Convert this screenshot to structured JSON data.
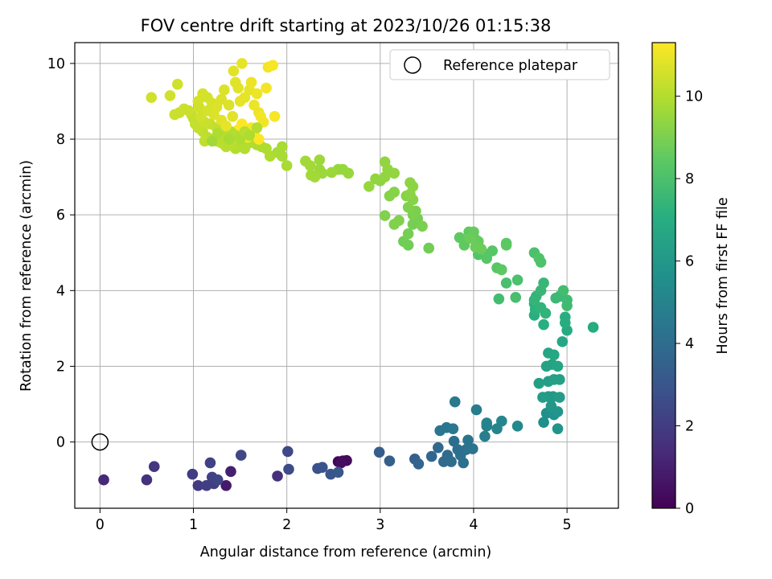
{
  "chart_data": {
    "type": "scatter",
    "title": "FOV centre drift starting at 2023/10/26 01:15:38",
    "xlabel": "Angular distance from reference (arcmin)",
    "ylabel": "Rotation from reference (arcmin)",
    "xlim": [
      -0.27,
      5.55
    ],
    "ylim": [
      -1.75,
      10.55
    ],
    "xticks": [
      "0",
      "1",
      "2",
      "3",
      "4",
      "5"
    ],
    "yticks": [
      "0",
      "2",
      "4",
      "6",
      "8",
      "10"
    ],
    "grid": true,
    "legend": {
      "position": "top-right",
      "label": "Reference platepar",
      "marker": "open-circle"
    },
    "reference_point": {
      "x": 0.0,
      "y": 0.0
    },
    "colorbar": {
      "label": "Hours from first FF file",
      "range": [
        0,
        11.3
      ],
      "ticks": [
        "0",
        "2",
        "4",
        "6",
        "8",
        "10"
      ],
      "colormap": "viridis"
    },
    "points": [
      [
        2.55,
        -0.52,
        0.1
      ],
      [
        2.6,
        -0.5,
        0.2
      ],
      [
        2.64,
        -0.49,
        0.3
      ],
      [
        2.58,
        -0.55,
        0.4
      ],
      [
        1.35,
        -1.15,
        0.8
      ],
      [
        1.4,
        -0.78,
        1.0
      ],
      [
        0.04,
        -1.0,
        1.3
      ],
      [
        1.9,
        -0.9,
        1.5
      ],
      [
        0.5,
        -1.0,
        1.6
      ],
      [
        0.58,
        -0.65,
        1.8
      ],
      [
        1.05,
        -1.15,
        1.9
      ],
      [
        0.99,
        -0.85,
        2.0
      ],
      [
        1.14,
        -1.15,
        2.1
      ],
      [
        1.22,
        -1.1,
        2.1
      ],
      [
        1.2,
        -0.93,
        2.2
      ],
      [
        1.18,
        -0.55,
        2.2
      ],
      [
        1.26,
        -1.0,
        2.3
      ],
      [
        1.51,
        -0.35,
        2.4
      ],
      [
        2.01,
        -0.25,
        2.5
      ],
      [
        2.02,
        -0.72,
        2.6
      ],
      [
        2.33,
        -0.7,
        2.8
      ],
      [
        2.38,
        -0.67,
        2.9
      ],
      [
        2.47,
        -0.85,
        3.0
      ],
      [
        2.55,
        -0.8,
        3.1
      ],
      [
        2.99,
        -0.27,
        3.3
      ],
      [
        3.1,
        -0.5,
        3.4
      ],
      [
        3.37,
        -0.45,
        3.5
      ],
      [
        3.41,
        -0.58,
        3.6
      ],
      [
        3.55,
        -0.38,
        3.7
      ],
      [
        3.62,
        -0.15,
        3.8
      ],
      [
        3.68,
        -0.52,
        3.9
      ],
      [
        3.72,
        -0.35,
        3.9
      ],
      [
        3.76,
        -0.52,
        4.0
      ],
      [
        3.79,
        0.02,
        4.0
      ],
      [
        3.83,
        -0.2,
        4.1
      ],
      [
        3.86,
        -0.35,
        4.1
      ],
      [
        3.89,
        -0.55,
        4.2
      ],
      [
        3.92,
        -0.2,
        4.2
      ],
      [
        3.94,
        0.05,
        4.3
      ],
      [
        3.99,
        -0.18,
        4.3
      ],
      [
        3.64,
        0.3,
        4.4
      ],
      [
        3.71,
        0.38,
        4.4
      ],
      [
        3.78,
        0.35,
        4.5
      ],
      [
        3.8,
        1.06,
        4.6
      ],
      [
        4.03,
        0.85,
        4.7
      ],
      [
        4.12,
        0.15,
        4.8
      ],
      [
        4.14,
        0.42,
        4.9
      ],
      [
        4.14,
        0.5,
        5.0
      ],
      [
        4.25,
        0.35,
        5.1
      ],
      [
        4.3,
        0.55,
        5.2
      ],
      [
        4.47,
        0.42,
        5.3
      ],
      [
        4.75,
        0.52,
        5.5
      ],
      [
        4.78,
        0.76,
        5.6
      ],
      [
        4.86,
        0.72,
        5.7
      ],
      [
        4.9,
        0.35,
        5.8
      ],
      [
        4.9,
        0.8,
        5.9
      ],
      [
        4.83,
        0.95,
        6.0
      ],
      [
        4.8,
        1.2,
        6.1
      ],
      [
        4.85,
        1.2,
        6.1
      ],
      [
        4.92,
        1.18,
        6.2
      ],
      [
        4.74,
        1.18,
        6.2
      ],
      [
        4.7,
        1.55,
        6.3
      ],
      [
        4.8,
        1.6,
        6.3
      ],
      [
        4.86,
        1.65,
        6.4
      ],
      [
        4.92,
        1.65,
        6.4
      ],
      [
        4.78,
        2.0,
        6.5
      ],
      [
        4.84,
        2.05,
        6.5
      ],
      [
        4.9,
        2.0,
        6.6
      ],
      [
        4.8,
        2.35,
        6.6
      ],
      [
        4.86,
        2.3,
        6.7
      ],
      [
        4.95,
        2.65,
        6.7
      ],
      [
        5.0,
        2.95,
        6.8
      ],
      [
        5.28,
        3.03,
        6.9
      ],
      [
        4.98,
        3.15,
        7.0
      ],
      [
        4.98,
        3.3,
        7.0
      ],
      [
        4.75,
        3.1,
        7.1
      ],
      [
        4.65,
        3.35,
        7.1
      ],
      [
        4.66,
        3.5,
        7.2
      ],
      [
        4.65,
        3.65,
        7.2
      ],
      [
        4.72,
        3.55,
        7.3
      ],
      [
        4.77,
        3.4,
        7.3
      ],
      [
        4.65,
        3.75,
        7.4
      ],
      [
        4.67,
        3.85,
        7.4
      ],
      [
        4.72,
        4.0,
        7.5
      ],
      [
        4.75,
        4.2,
        7.5
      ],
      [
        4.88,
        3.8,
        7.6
      ],
      [
        4.92,
        3.85,
        7.6
      ],
      [
        5.0,
        3.6,
        7.7
      ],
      [
        5.0,
        3.75,
        7.7
      ],
      [
        4.96,
        4.0,
        7.8
      ],
      [
        4.27,
        3.78,
        7.8
      ],
      [
        4.35,
        4.2,
        7.9
      ],
      [
        4.45,
        3.82,
        7.9
      ],
      [
        4.47,
        4.28,
        8.0
      ],
      [
        4.65,
        5.0,
        8.0
      ],
      [
        4.7,
        4.85,
        8.1
      ],
      [
        4.72,
        4.75,
        8.1
      ],
      [
        4.05,
        4.95,
        8.2
      ],
      [
        4.1,
        5.0,
        8.2
      ],
      [
        4.14,
        4.85,
        8.3
      ],
      [
        4.2,
        5.05,
        8.3
      ],
      [
        4.25,
        4.6,
        8.3
      ],
      [
        4.3,
        4.55,
        8.4
      ],
      [
        4.35,
        5.2,
        8.4
      ],
      [
        4.35,
        5.25,
        8.4
      ],
      [
        3.85,
        5.4,
        8.5
      ],
      [
        3.9,
        5.2,
        8.5
      ],
      [
        3.95,
        5.55,
        8.5
      ],
      [
        4.0,
        5.55,
        8.6
      ],
      [
        4.02,
        5.35,
        8.6
      ],
      [
        4.05,
        5.3,
        8.6
      ],
      [
        4.08,
        5.1,
        8.7
      ],
      [
        3.96,
        5.38,
        8.7
      ],
      [
        4.02,
        5.15,
        8.7
      ],
      [
        3.52,
        5.12,
        8.8
      ],
      [
        3.3,
        5.2,
        8.8
      ],
      [
        3.25,
        5.3,
        8.8
      ],
      [
        3.3,
        5.5,
        8.9
      ],
      [
        3.35,
        5.75,
        8.9
      ],
      [
        3.4,
        5.9,
        8.9
      ],
      [
        3.45,
        5.7,
        9.0
      ],
      [
        3.38,
        6.1,
        9.0
      ],
      [
        3.35,
        6.0,
        9.0
      ],
      [
        3.3,
        6.2,
        9.1
      ],
      [
        3.2,
        5.85,
        9.1
      ],
      [
        3.05,
        5.98,
        9.1
      ],
      [
        3.15,
        5.75,
        9.1
      ],
      [
        3.35,
        6.4,
        9.2
      ],
      [
        3.28,
        6.5,
        9.2
      ],
      [
        3.1,
        6.5,
        9.2
      ],
      [
        3.15,
        6.6,
        9.2
      ],
      [
        3.32,
        6.55,
        9.3
      ],
      [
        3.32,
        6.85,
        9.3
      ],
      [
        3.35,
        6.75,
        9.3
      ],
      [
        3.0,
        6.9,
        9.3
      ],
      [
        2.95,
        6.95,
        9.4
      ],
      [
        3.05,
        7.0,
        9.4
      ],
      [
        3.08,
        7.2,
        9.4
      ],
      [
        3.05,
        7.4,
        9.4
      ],
      [
        3.15,
        7.1,
        9.4
      ],
      [
        2.88,
        6.75,
        9.5
      ],
      [
        2.66,
        7.1,
        9.5
      ],
      [
        2.6,
        7.2,
        9.5
      ],
      [
        2.55,
        7.2,
        9.5
      ],
      [
        2.48,
        7.12,
        9.6
      ],
      [
        2.38,
        7.1,
        9.6
      ],
      [
        2.35,
        7.2,
        9.6
      ],
      [
        2.35,
        7.45,
        9.6
      ],
      [
        2.26,
        7.05,
        9.7
      ],
      [
        2.3,
        7.0,
        9.7
      ],
      [
        2.2,
        7.42,
        9.7
      ],
      [
        2.25,
        7.3,
        9.7
      ],
      [
        2.0,
        7.3,
        9.8
      ],
      [
        1.95,
        7.55,
        9.8
      ],
      [
        1.95,
        7.8,
        9.8
      ],
      [
        1.9,
        7.65,
        9.8
      ],
      [
        1.82,
        7.55,
        9.9
      ],
      [
        1.78,
        7.75,
        9.9
      ],
      [
        1.73,
        7.8,
        9.9
      ],
      [
        1.68,
        7.85,
        9.9
      ],
      [
        1.6,
        7.9,
        10.0
      ],
      [
        1.55,
        7.75,
        10.0
      ],
      [
        1.5,
        7.8,
        10.0
      ],
      [
        1.45,
        7.75,
        10.0
      ],
      [
        1.4,
        7.85,
        10.1
      ],
      [
        1.35,
        7.8,
        10.1
      ],
      [
        1.3,
        7.9,
        10.1
      ],
      [
        1.25,
        7.95,
        10.1
      ],
      [
        1.2,
        8.0,
        10.2
      ],
      [
        1.15,
        8.05,
        10.2
      ],
      [
        1.12,
        7.95,
        10.2
      ],
      [
        1.1,
        8.2,
        10.2
      ],
      [
        1.05,
        8.3,
        10.3
      ],
      [
        1.02,
        8.4,
        10.3
      ],
      [
        1.0,
        8.55,
        10.3
      ],
      [
        0.98,
        8.65,
        10.3
      ],
      [
        0.95,
        8.75,
        10.4
      ],
      [
        0.9,
        8.8,
        10.4
      ],
      [
        0.85,
        8.7,
        10.4
      ],
      [
        0.8,
        8.65,
        10.4
      ],
      [
        0.75,
        9.15,
        10.5
      ],
      [
        0.55,
        9.1,
        10.5
      ],
      [
        0.83,
        9.45,
        10.5
      ],
      [
        1.05,
        9.0,
        10.6
      ],
      [
        1.1,
        9.2,
        10.6
      ],
      [
        1.15,
        9.1,
        10.6
      ],
      [
        1.2,
        8.95,
        10.6
      ],
      [
        1.25,
        8.85,
        10.7
      ],
      [
        1.3,
        9.05,
        10.7
      ],
      [
        1.33,
        9.3,
        10.7
      ],
      [
        1.38,
        8.9,
        10.7
      ],
      [
        1.42,
        8.6,
        10.8
      ],
      [
        1.43,
        9.8,
        10.8
      ],
      [
        1.45,
        9.5,
        10.8
      ],
      [
        1.48,
        9.35,
        10.8
      ],
      [
        1.5,
        9.0,
        10.9
      ],
      [
        1.52,
        10.0,
        10.9
      ],
      [
        1.55,
        9.1,
        10.9
      ],
      [
        1.6,
        9.3,
        10.9
      ],
      [
        1.62,
        9.5,
        11.0
      ],
      [
        1.65,
        8.9,
        11.0
      ],
      [
        1.68,
        9.2,
        11.0
      ],
      [
        1.7,
        8.7,
        11.0
      ],
      [
        1.72,
        8.6,
        11.1
      ],
      [
        1.75,
        8.45,
        11.1
      ],
      [
        1.78,
        9.35,
        11.1
      ],
      [
        1.8,
        9.9,
        11.1
      ],
      [
        1.85,
        9.95,
        11.2
      ],
      [
        1.87,
        8.6,
        11.2
      ],
      [
        1.62,
        8.3,
        11.2
      ],
      [
        1.58,
        8.05,
        11.2
      ],
      [
        1.65,
        8.15,
        11.3
      ],
      [
        1.7,
        8.0,
        11.3
      ],
      [
        1.52,
        8.4,
        11.3
      ],
      [
        1.48,
        8.25,
        11.3
      ],
      [
        1.4,
        8.2,
        10.0
      ],
      [
        1.3,
        8.1,
        10.1
      ],
      [
        1.25,
        8.3,
        10.2
      ],
      [
        1.18,
        8.4,
        10.3
      ],
      [
        1.12,
        8.45,
        10.4
      ],
      [
        1.08,
        8.6,
        10.5
      ],
      [
        1.06,
        8.85,
        10.5
      ],
      [
        1.15,
        8.75,
        10.6
      ],
      [
        1.22,
        8.65,
        10.7
      ],
      [
        1.3,
        8.5,
        10.8
      ],
      [
        1.35,
        8.35,
        10.9
      ],
      [
        1.45,
        8.1,
        10.0
      ],
      [
        1.5,
        8.0,
        9.9
      ],
      [
        1.55,
        8.2,
        10.1
      ],
      [
        1.6,
        8.1,
        9.9
      ],
      [
        1.68,
        8.3,
        10.0
      ],
      [
        1.38,
        8.0,
        9.8
      ],
      [
        1.26,
        8.15,
        9.9
      ],
      [
        1.2,
        7.95,
        9.7
      ]
    ]
  }
}
